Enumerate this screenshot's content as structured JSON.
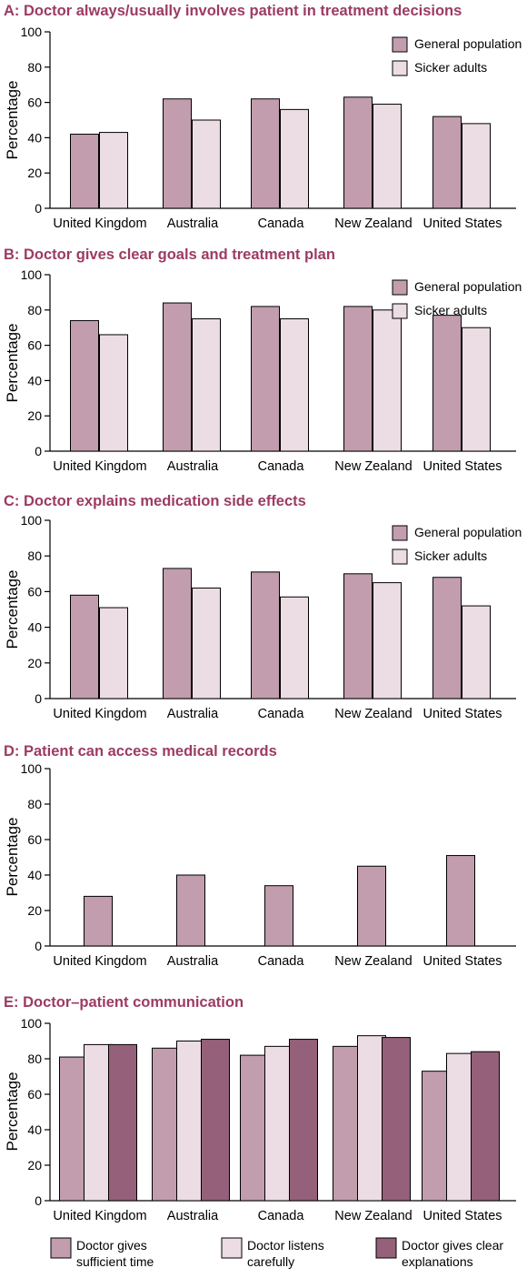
{
  "colors": {
    "title": "#9c3b63",
    "general": "#c19dad",
    "sicker": "#ecdce3",
    "dark": "#94607a",
    "stroke": "#000000"
  },
  "chart_data": [
    {
      "type": "bar",
      "title": "A: Doctor always/usually involves patient in treatment decisions",
      "ylabel": "Percentage",
      "ylim": [
        0,
        100
      ],
      "yticks": [
        0,
        20,
        40,
        60,
        80,
        100
      ],
      "categories": [
        "United Kingdom",
        "Australia",
        "Canada",
        "New Zealand",
        "United States"
      ],
      "legend": "top-right",
      "series": [
        {
          "name": "General population",
          "color": "general",
          "values": [
            42,
            62,
            62,
            63,
            52
          ]
        },
        {
          "name": "Sicker adults",
          "color": "sicker",
          "values": [
            43,
            50,
            56,
            59,
            48
          ]
        }
      ]
    },
    {
      "type": "bar",
      "title": "B: Doctor gives clear goals and treatment plan",
      "ylabel": "Percentage",
      "ylim": [
        0,
        100
      ],
      "yticks": [
        0,
        20,
        40,
        60,
        80,
        100
      ],
      "categories": [
        "United Kingdom",
        "Australia",
        "Canada",
        "New Zealand",
        "United States"
      ],
      "legend": "top-right",
      "series": [
        {
          "name": "General population",
          "color": "general",
          "values": [
            74,
            84,
            82,
            82,
            77
          ]
        },
        {
          "name": "Sicker adults",
          "color": "sicker",
          "values": [
            66,
            75,
            75,
            80,
            70
          ]
        }
      ]
    },
    {
      "type": "bar",
      "title": "C: Doctor explains medication side effects",
      "ylabel": "Percentage",
      "ylim": [
        0,
        100
      ],
      "yticks": [
        0,
        20,
        40,
        60,
        80,
        100
      ],
      "categories": [
        "United Kingdom",
        "Australia",
        "Canada",
        "New Zealand",
        "United States"
      ],
      "legend": "top-right",
      "series": [
        {
          "name": "General population",
          "color": "general",
          "values": [
            58,
            73,
            71,
            70,
            68
          ]
        },
        {
          "name": "Sicker adults",
          "color": "sicker",
          "values": [
            51,
            62,
            57,
            65,
            52
          ]
        }
      ]
    },
    {
      "type": "bar",
      "title": "D: Patient can access medical records",
      "ylabel": "Percentage",
      "ylim": [
        0,
        100
      ],
      "yticks": [
        0,
        20,
        40,
        60,
        80,
        100
      ],
      "categories": [
        "United Kingdom",
        "Australia",
        "Canada",
        "New Zealand",
        "United States"
      ],
      "legend": "none",
      "series": [
        {
          "color": "general",
          "values": [
            28,
            40,
            34,
            45,
            51
          ]
        }
      ]
    },
    {
      "type": "bar",
      "title": "E: Doctor–patient communication",
      "ylabel": "Percentage",
      "ylim": [
        0,
        100
      ],
      "yticks": [
        0,
        20,
        40,
        60,
        80,
        100
      ],
      "categories": [
        "United Kingdom",
        "Australia",
        "Canada",
        "New Zealand",
        "United States"
      ],
      "legend": "bottom",
      "series": [
        {
          "name": "Doctor gives sufficient time",
          "label_lines": [
            "Doctor gives",
            "sufficient time"
          ],
          "color": "general",
          "values": [
            81,
            86,
            82,
            87,
            73
          ]
        },
        {
          "name": "Doctor listens carefully",
          "label_lines": [
            "Doctor listens",
            "carefully"
          ],
          "color": "sicker",
          "values": [
            88,
            90,
            87,
            93,
            83
          ]
        },
        {
          "name": "Doctor gives clear explanations",
          "label_lines": [
            "Doctor gives clear",
            "explanations"
          ],
          "color": "dark",
          "values": [
            88,
            91,
            91,
            92,
            84
          ]
        }
      ]
    }
  ]
}
